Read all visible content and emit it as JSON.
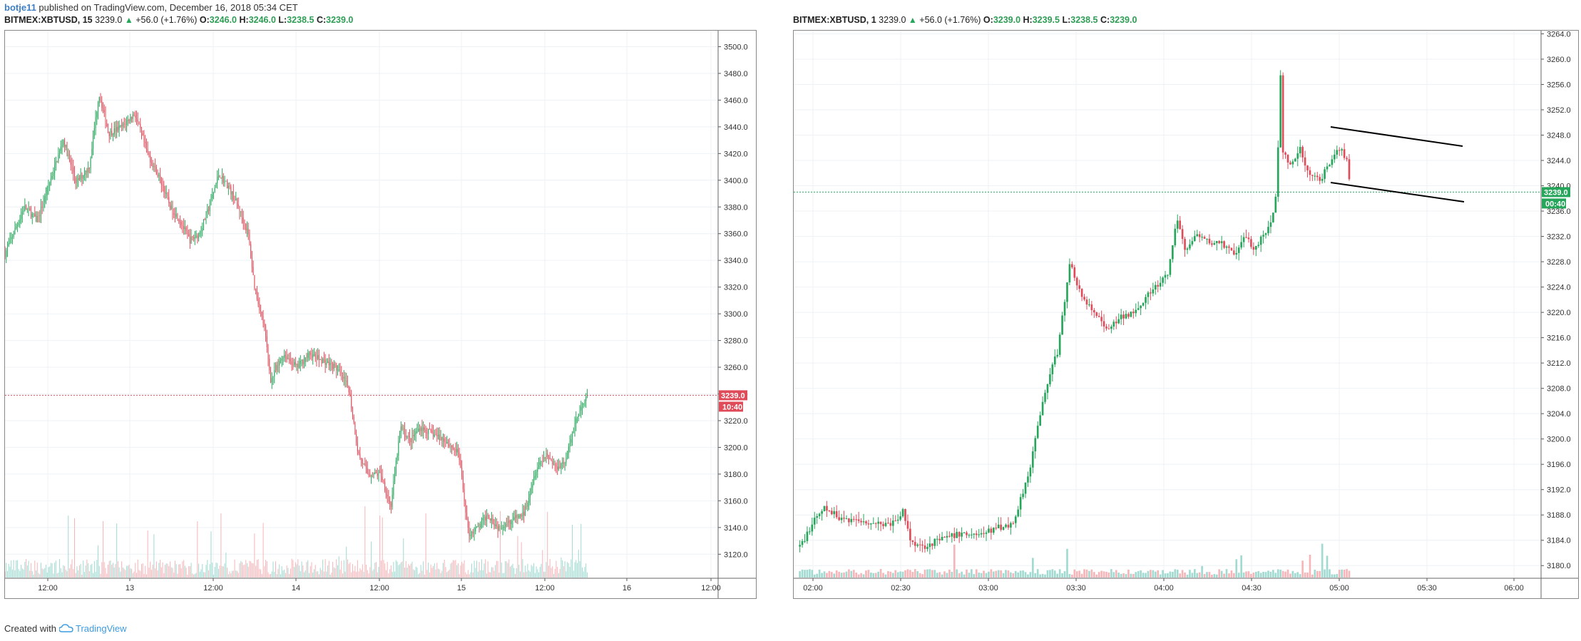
{
  "header": {
    "author": "botje11",
    "published_text": "published on TradingView.com, December 16, 2018 05:34 CET"
  },
  "footer": {
    "created_with": "Created with",
    "brand": "TradingView"
  },
  "colors": {
    "up": "#26a65b",
    "down": "#e04b5a",
    "grid": "#eef2f5",
    "vol_up": "#8fd3c9",
    "vol_down": "#f4a8ad",
    "price_tag": "#e04b5a",
    "price_tag_right": "#26a65b",
    "accent": "#3d7fc6"
  },
  "icons": {
    "brand_logo": "tradingview-cloud-icon",
    "legend_arrow": "triangle-up-icon"
  },
  "chart_data": [
    {
      "type": "candlestick",
      "symbol": "BITMEX:XBTUSD, 15",
      "legend": {
        "last": "3239.0",
        "change": "+56.0 (+1.76%)",
        "O": "3246.0",
        "H": "3246.0",
        "L": "3238.5",
        "C": "3239.0"
      },
      "x_ticks": [
        "12:00",
        "13",
        "12:00",
        "14",
        "12:00",
        "15",
        "12:00",
        "16",
        "12:00"
      ],
      "y_ticks": [
        "3120.0",
        "3140.0",
        "3160.0",
        "3180.0",
        "3200.0",
        "3220.0",
        "3240.0",
        "3260.0",
        "3280.0",
        "3300.0",
        "3320.0",
        "3340.0",
        "3360.0",
        "3380.0",
        "3400.0",
        "3420.0",
        "3440.0",
        "3460.0",
        "3480.0",
        "3500.0"
      ],
      "ylim": [
        3102,
        3512
      ],
      "last_price_label": "3239.0",
      "countdown_label": "10:40",
      "close_path": [
        [
          0,
          3345
        ],
        [
          3,
          3380
        ],
        [
          5,
          3370
        ],
        [
          7,
          3400
        ],
        [
          9,
          3430
        ],
        [
          11,
          3398
        ],
        [
          13,
          3410
        ],
        [
          14.5,
          3465
        ],
        [
          16,
          3435
        ],
        [
          18,
          3440
        ],
        [
          20,
          3450
        ],
        [
          22,
          3420
        ],
        [
          24,
          3400
        ],
        [
          25.5,
          3380
        ],
        [
          27,
          3370
        ],
        [
          28.5,
          3355
        ],
        [
          30,
          3360
        ],
        [
          31.5,
          3380
        ],
        [
          33,
          3405
        ],
        [
          34.5,
          3395
        ],
        [
          36,
          3380
        ],
        [
          37.5,
          3360
        ],
        [
          38.5,
          3320
        ],
        [
          40,
          3290
        ],
        [
          41,
          3250
        ],
        [
          43,
          3270
        ],
        [
          45,
          3260
        ],
        [
          47,
          3270
        ],
        [
          49,
          3265
        ],
        [
          51,
          3260
        ],
        [
          53,
          3245
        ],
        [
          54.5,
          3195
        ],
        [
          56,
          3180
        ],
        [
          58,
          3180
        ],
        [
          59.5,
          3155
        ],
        [
          61,
          3215
        ],
        [
          62.5,
          3205
        ],
        [
          64,
          3215
        ],
        [
          66,
          3210
        ],
        [
          68,
          3205
        ],
        [
          70,
          3195
        ],
        [
          71.5,
          3135
        ],
        [
          73,
          3140
        ],
        [
          74.5,
          3150
        ],
        [
          76,
          3140
        ],
        [
          78,
          3145
        ],
        [
          80,
          3150
        ],
        [
          82,
          3185
        ],
        [
          83.5,
          3195
        ],
        [
          85,
          3185
        ],
        [
          86.5,
          3190
        ],
        [
          88,
          3220
        ],
        [
          89,
          3230
        ],
        [
          90,
          3239
        ]
      ],
      "x_extent": [
        0,
        110
      ]
    },
    {
      "type": "candlestick",
      "symbol": "BITMEX:XBTUSD, 1",
      "legend": {
        "last": "3239.0",
        "change": "+56.0 (+1.76%)",
        "O": "3239.0",
        "H": "3239.5",
        "L": "3238.5",
        "C": "3239.0"
      },
      "x_ticks": [
        "02:00",
        "02:30",
        "03:00",
        "03:30",
        "04:00",
        "04:30",
        "05:00",
        "05:30",
        "06:00"
      ],
      "y_ticks": [
        "3180.0",
        "3184.0",
        "3188.0",
        "3192.0",
        "3196.0",
        "3200.0",
        "3204.0",
        "3208.0",
        "3212.0",
        "3216.0",
        "3220.0",
        "3224.0",
        "3228.0",
        "3232.0",
        "3236.0",
        "3240.0",
        "3244.0",
        "3248.0",
        "3252.0",
        "3256.0",
        "3260.0",
        "3264.0"
      ],
      "ylim": [
        3178,
        3264.5
      ],
      "last_price_label": "3239.0",
      "countdown_label": "00:40",
      "x_extent": [
        115,
        480
      ],
      "close_path": [
        [
          118,
          3183
        ],
        [
          125,
          3187
        ],
        [
          130,
          3189
        ],
        [
          138,
          3187.5
        ],
        [
          150,
          3187
        ],
        [
          160,
          3186.5
        ],
        [
          166,
          3187
        ],
        [
          168,
          3189
        ],
        [
          172,
          3184
        ],
        [
          178,
          3183
        ],
        [
          186,
          3184
        ],
        [
          196,
          3185
        ],
        [
          208,
          3185
        ],
        [
          214,
          3186
        ],
        [
          222,
          3186.5
        ],
        [
          230,
          3195
        ],
        [
          238,
          3208
        ],
        [
          244,
          3214
        ],
        [
          250,
          3228
        ],
        [
          256,
          3222
        ],
        [
          262,
          3220
        ],
        [
          268,
          3217
        ],
        [
          274,
          3219
        ],
        [
          280,
          3220
        ],
        [
          286,
          3222
        ],
        [
          292,
          3224
        ],
        [
          298,
          3226
        ],
        [
          302,
          3235
        ],
        [
          306,
          3230
        ],
        [
          312,
          3232
        ],
        [
          318,
          3231
        ],
        [
          324,
          3231
        ],
        [
          330,
          3229
        ],
        [
          336,
          3232
        ],
        [
          340,
          3230
        ],
        [
          346,
          3233
        ],
        [
          350,
          3236
        ],
        [
          351.5,
          3245
        ],
        [
          352.5,
          3260
        ],
        [
          354,
          3245
        ],
        [
          358,
          3243
        ],
        [
          362,
          3246
        ],
        [
          366,
          3242
        ],
        [
          372,
          3241
        ],
        [
          378,
          3244
        ],
        [
          382,
          3246
        ],
        [
          385,
          3244
        ],
        [
          387.5,
          3239
        ]
      ]
    }
  ]
}
